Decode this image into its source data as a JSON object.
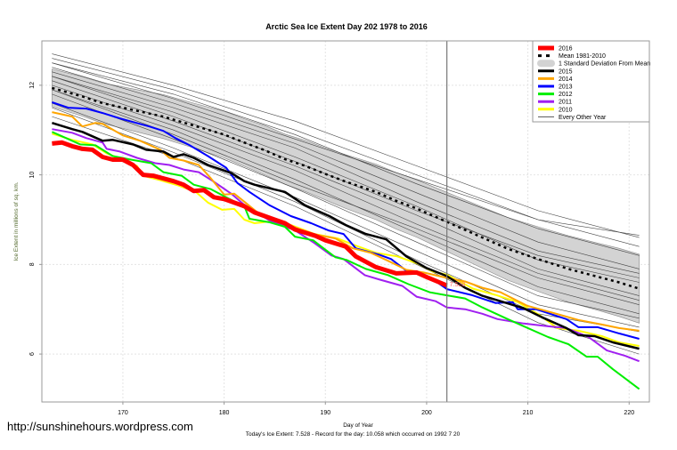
{
  "watermark": "http://sunshinehours.wordpress.com",
  "chart_data": {
    "type": "line",
    "title": "Arctic Sea Ice Extent Day 202 1978 to 2016",
    "xlabel": "Day of Year",
    "ylabel": "Ice Extent in millions of sq. km.",
    "subtitle": "Today's Ice Extent: 7.528  - Record for the day: 10.058 which occurred on 1992 7 20",
    "xlim": [
      162,
      222
    ],
    "ylim": [
      4.93,
      12.99
    ],
    "xticks": [
      170,
      180,
      190,
      200,
      210,
      220
    ],
    "yticks": [
      6,
      8,
      10,
      12
    ],
    "grid": true,
    "legend_position": "top-right",
    "current_day": 202,
    "current_value_label": "7.528",
    "mean": {
      "name": "Mean 1981-2010",
      "x": [
        163,
        166,
        168,
        171,
        174,
        177,
        180,
        182,
        184,
        186,
        188,
        190,
        192,
        195,
        197,
        199,
        202,
        205,
        208,
        211,
        214,
        217,
        219,
        221
      ],
      "y": [
        11.94,
        11.75,
        11.6,
        11.45,
        11.3,
        11.1,
        10.9,
        10.72,
        10.55,
        10.35,
        10.2,
        10.02,
        9.85,
        9.62,
        9.42,
        9.25,
        8.95,
        8.65,
        8.35,
        8.12,
        7.9,
        7.72,
        7.6,
        7.46
      ],
      "sd": [
        0.42,
        0.44,
        0.45,
        0.47,
        0.49,
        0.5,
        0.52,
        0.53,
        0.55,
        0.56,
        0.57,
        0.58,
        0.6,
        0.62,
        0.63,
        0.64,
        0.66,
        0.68,
        0.7,
        0.72,
        0.74,
        0.75,
        0.76,
        0.77
      ]
    },
    "sd_label": "1 Standard Deviation From Mean",
    "other_years": {
      "name": "Every Other Year",
      "x": [
        163,
        175,
        187,
        199,
        211,
        221
      ],
      "lines": [
        [
          12.7,
          12.0,
          11.2,
          10.2,
          9.2,
          8.6
        ],
        [
          12.6,
          11.9,
          11.0,
          10.0,
          9.0,
          8.4
        ],
        [
          12.5,
          11.8,
          10.9,
          9.8,
          8.8,
          8.2
        ],
        [
          12.4,
          11.6,
          10.7,
          9.6,
          8.5,
          7.9
        ],
        [
          12.3,
          11.5,
          10.6,
          9.4,
          8.3,
          7.8
        ],
        [
          12.2,
          11.4,
          10.4,
          9.3,
          8.1,
          7.6
        ],
        [
          12.1,
          11.2,
          10.2,
          9.1,
          7.9,
          7.3
        ],
        [
          12.0,
          11.1,
          10.1,
          8.9,
          7.8,
          7.2
        ],
        [
          11.9,
          11.0,
          9.9,
          8.7,
          7.5,
          6.9
        ],
        [
          11.8,
          10.8,
          9.7,
          8.5,
          7.3,
          6.8
        ],
        [
          11.6,
          10.6,
          9.5,
          8.3,
          7.1,
          6.6
        ],
        [
          11.5,
          10.5,
          9.4,
          8.1,
          6.9,
          6.5
        ],
        [
          11.3,
          10.4,
          9.3,
          8.0,
          6.7,
          6.0
        ],
        [
          12.5,
          11.7,
          10.8,
          9.9,
          9.0,
          8.65
        ],
        [
          11.9,
          10.9,
          9.8,
          8.8,
          7.7,
          7.1
        ],
        [
          12.2,
          11.3,
          10.3,
          9.2,
          8.2,
          7.7
        ]
      ]
    },
    "series": [
      {
        "name": "2010",
        "color": "#ffff00",
        "width": 2,
        "x": [
          163,
          165,
          167,
          168.4,
          170.2,
          171.4,
          172,
          173.7,
          175.5,
          177.2,
          178.4,
          179.8,
          181,
          182,
          183,
          184.5,
          186.6,
          188.9,
          191.2,
          193,
          195,
          197.1,
          199.1,
          200.6,
          202,
          204.6,
          206.8,
          209,
          211.1,
          212.9,
          215,
          217.3,
          219,
          221
        ],
        "y": [
          10.92,
          10.78,
          10.68,
          10.48,
          10.32,
          10.2,
          9.98,
          9.88,
          9.76,
          9.62,
          9.38,
          9.22,
          9.24,
          9.0,
          8.92,
          8.96,
          8.88,
          8.68,
          8.58,
          8.42,
          8.26,
          8.18,
          8.02,
          7.84,
          7.77,
          7.46,
          7.32,
          7.16,
          6.88,
          6.58,
          6.52,
          6.4,
          6.26,
          6.18
        ]
      },
      {
        "name": "2011",
        "color": "#a020f0",
        "width": 2,
        "x": [
          163,
          165,
          166.4,
          168,
          168.4,
          169.7,
          171.4,
          173.2,
          174.6,
          176,
          177.5,
          178.9,
          180.7,
          182,
          184.5,
          187,
          188.9,
          190.6,
          191.8,
          193.9,
          195.4,
          197.6,
          199,
          200.9,
          202,
          203.8,
          205.5,
          207,
          209.6,
          212,
          213.8,
          216,
          217.8,
          219.6,
          221
        ],
        "y": [
          11.02,
          10.94,
          10.82,
          10.72,
          10.58,
          10.52,
          10.38,
          10.26,
          10.22,
          10.12,
          10.06,
          9.86,
          9.58,
          9.33,
          8.98,
          8.76,
          8.48,
          8.2,
          8.12,
          7.76,
          7.66,
          7.52,
          7.28,
          7.18,
          7.04,
          7.0,
          6.9,
          6.78,
          6.68,
          6.62,
          6.58,
          6.38,
          6.08,
          5.96,
          5.84
        ]
      },
      {
        "name": "2012",
        "color": "#00ee00",
        "width": 2,
        "x": [
          163,
          164.4,
          165.8,
          167.3,
          169,
          170.8,
          172.8,
          174,
          175.8,
          177,
          178.7,
          180.7,
          182,
          182.5,
          184.5,
          186,
          187,
          188.8,
          189.7,
          191,
          192.1,
          194,
          196.2,
          198.2,
          200.3,
          202,
          203.8,
          205.5,
          208,
          209.6,
          212,
          214,
          215.8,
          216.9,
          218.4,
          221
        ],
        "y": [
          10.96,
          10.82,
          10.68,
          10.66,
          10.42,
          10.34,
          10.26,
          10.06,
          9.98,
          9.78,
          9.68,
          9.44,
          9.3,
          9.02,
          8.94,
          8.84,
          8.62,
          8.54,
          8.38,
          8.16,
          8.1,
          7.9,
          7.76,
          7.56,
          7.38,
          7.31,
          7.24,
          7.04,
          6.78,
          6.62,
          6.38,
          6.22,
          5.94,
          5.94,
          5.66,
          5.22
        ]
      },
      {
        "name": "2013",
        "color": "#0000ff",
        "width": 2,
        "x": [
          163,
          164.6,
          166.4,
          168,
          169.7,
          171,
          172.6,
          174,
          175.2,
          176.6,
          178.4,
          180.2,
          181.3,
          182.5,
          184.5,
          186.6,
          188.6,
          190.3,
          191.8,
          193,
          195.3,
          196.5,
          198,
          200.3,
          202,
          204.4,
          206.8,
          208.5,
          209,
          210.8,
          213.8,
          215,
          216.9,
          219,
          221
        ],
        "y": [
          11.62,
          11.5,
          11.48,
          11.38,
          11.26,
          11.18,
          11.08,
          10.98,
          10.82,
          10.66,
          10.42,
          10.16,
          9.82,
          9.62,
          9.32,
          9.08,
          8.92,
          8.76,
          8.68,
          8.36,
          8.22,
          8.12,
          7.86,
          7.72,
          7.45,
          7.32,
          7.14,
          7.16,
          7.0,
          7.0,
          6.78,
          6.6,
          6.6,
          6.46,
          6.34
        ]
      },
      {
        "name": "2014",
        "color": "#ffa500",
        "width": 2,
        "x": [
          163,
          165,
          166,
          167.3,
          168,
          170,
          171.7,
          173.7,
          174.6,
          176,
          177.5,
          178.7,
          180,
          181,
          182,
          183.3,
          185.4,
          187.5,
          189.2,
          191,
          192.7,
          194.5,
          196.2,
          198,
          199.7,
          202,
          203.8,
          205.5,
          207.3,
          209.9,
          212.5,
          215,
          217.3,
          219,
          221
        ],
        "y": [
          11.4,
          11.3,
          11.08,
          11.16,
          11.14,
          10.88,
          10.76,
          10.56,
          10.38,
          10.32,
          10.22,
          9.92,
          9.56,
          9.58,
          9.4,
          9.16,
          8.98,
          8.78,
          8.66,
          8.58,
          8.36,
          8.26,
          8.08,
          7.88,
          7.82,
          7.7,
          7.62,
          7.48,
          7.38,
          7.08,
          6.92,
          6.76,
          6.66,
          6.58,
          6.52
        ]
      },
      {
        "name": "2015",
        "color": "#000000",
        "width": 2.5,
        "x": [
          163,
          165,
          166,
          168,
          169,
          171,
          172.3,
          174,
          175,
          176,
          177,
          178.4,
          180.7,
          182,
          183,
          186,
          188,
          190.4,
          192,
          194,
          196,
          198,
          200,
          202,
          203.8,
          205.5,
          207.3,
          209.6,
          211.4,
          213.8,
          215,
          216.6,
          218.4,
          221
        ],
        "y": [
          11.16,
          11.02,
          10.96,
          10.76,
          10.78,
          10.68,
          10.56,
          10.52,
          10.4,
          10.46,
          10.38,
          10.22,
          10.04,
          9.86,
          9.78,
          9.62,
          9.32,
          9.08,
          8.88,
          8.68,
          8.56,
          8.18,
          7.92,
          7.74,
          7.48,
          7.3,
          7.18,
          7.02,
          6.82,
          6.58,
          6.42,
          6.4,
          6.26,
          6.12
        ]
      },
      {
        "name": "2016",
        "color": "#ff0000",
        "width": 5,
        "x": [
          163,
          164,
          165,
          166,
          167,
          168,
          169,
          170,
          171,
          172,
          173,
          175,
          176,
          177,
          178,
          179,
          180,
          182,
          183,
          185,
          186,
          187,
          189,
          190,
          192,
          193,
          195,
          197,
          199,
          200,
          202
        ],
        "y": [
          10.7,
          10.72,
          10.64,
          10.58,
          10.56,
          10.4,
          10.34,
          10.34,
          10.22,
          10.0,
          9.98,
          9.86,
          9.78,
          9.64,
          9.66,
          9.5,
          9.46,
          9.3,
          9.16,
          9.0,
          8.92,
          8.78,
          8.64,
          8.54,
          8.4,
          8.18,
          7.94,
          7.8,
          7.82,
          7.72,
          7.53
        ]
      }
    ],
    "legend": [
      {
        "label": "2016",
        "kind": "line",
        "color": "#ff0000",
        "width": 5
      },
      {
        "label": "Mean 1981-2010",
        "kind": "dash",
        "color": "#000000",
        "width": 3
      },
      {
        "label": "1 Standard Deviation From Mean",
        "kind": "band",
        "color": "#d3d3d3",
        "width": 10
      },
      {
        "label": "2015",
        "kind": "line",
        "color": "#000000",
        "width": 3
      },
      {
        "label": "2014",
        "kind": "line",
        "color": "#ffa500",
        "width": 3
      },
      {
        "label": "2013",
        "kind": "line",
        "color": "#0000ff",
        "width": 3
      },
      {
        "label": "2012",
        "kind": "line",
        "color": "#00ee00",
        "width": 3
      },
      {
        "label": "2011",
        "kind": "line",
        "color": "#a020f0",
        "width": 3
      },
      {
        "label": "2010",
        "kind": "line",
        "color": "#ffff00",
        "width": 3
      },
      {
        "label": "Every Other Year",
        "kind": "line",
        "color": "#555555",
        "width": 1
      }
    ]
  }
}
